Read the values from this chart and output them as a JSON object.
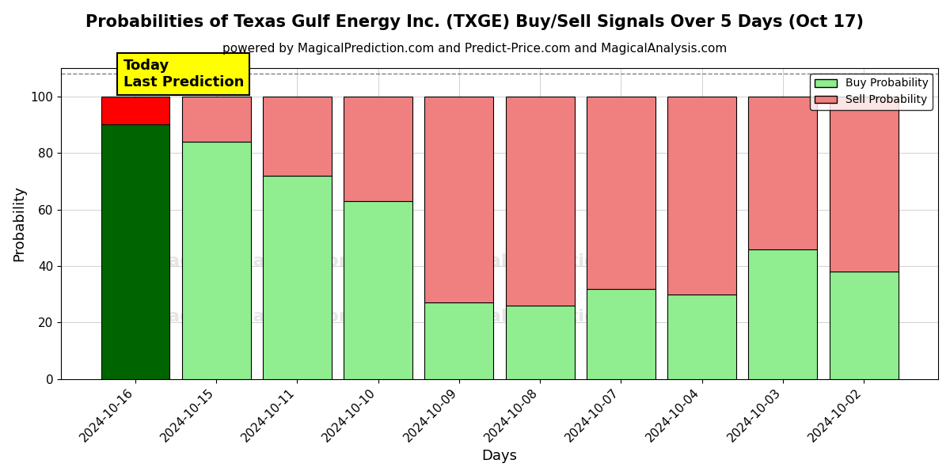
{
  "title": "Probabilities of Texas Gulf Energy Inc. (TXGE) Buy/Sell Signals Over 5 Days (Oct 17)",
  "subtitle": "powered by MagicalPrediction.com and Predict-Price.com and MagicalAnalysis.com",
  "xlabel": "Days",
  "ylabel": "Probability",
  "categories": [
    "2024-10-16",
    "2024-10-15",
    "2024-10-11",
    "2024-10-10",
    "2024-10-09",
    "2024-10-08",
    "2024-10-07",
    "2024-10-04",
    "2024-10-03",
    "2024-10-02"
  ],
  "buy_values": [
    90,
    84,
    72,
    63,
    27,
    26,
    32,
    30,
    46,
    38
  ],
  "sell_values": [
    10,
    16,
    28,
    37,
    73,
    74,
    68,
    70,
    54,
    62
  ],
  "today_buy_color": "#006400",
  "today_sell_color": "#FF0000",
  "regular_buy_color": "#90EE90",
  "regular_sell_color": "#F08080",
  "today_annotation_text": "Today\nLast Prediction",
  "today_annotation_bg": "#FFFF00",
  "ylim": [
    0,
    110
  ],
  "dashed_line_y": 108,
  "legend_buy_label": "Buy Probability",
  "legend_sell_label": "Sell Probability",
  "bar_edge_color": "#000000",
  "bar_linewidth": 0.8,
  "bar_width": 0.85,
  "title_fontsize": 15,
  "subtitle_fontsize": 11,
  "axis_label_fontsize": 13,
  "tick_fontsize": 11,
  "fig_bg_color": "#ffffff",
  "plot_bg_color": "#ffffff"
}
